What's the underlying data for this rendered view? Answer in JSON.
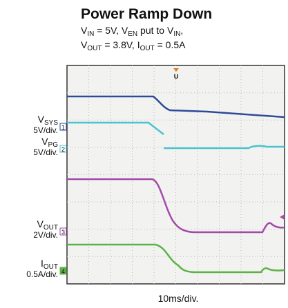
{
  "header": {
    "title": "Power Ramp Down",
    "subtitle": [
      [
        "V",
        "IN",
        " = 5V, V",
        "EN",
        "  put to V",
        "IN",
        ","
      ],
      [
        "V",
        "OUT",
        " = 3.8V, I",
        "OUT",
        " = 0.5A"
      ]
    ]
  },
  "channels": [
    {
      "symbol": "V",
      "sub": "SYS",
      "scale": "5V/div.",
      "marker": "1"
    },
    {
      "symbol": "V",
      "sub": "PG",
      "scale": "5V/div.",
      "marker": "2"
    },
    {
      "symbol": "V",
      "sub": "OUT",
      "scale": "2V/div.",
      "marker": "3"
    },
    {
      "symbol": "I",
      "sub": "OUT",
      "scale": "0.5A/div.",
      "marker": "4"
    }
  ],
  "timebase": "10ms/div."
}
